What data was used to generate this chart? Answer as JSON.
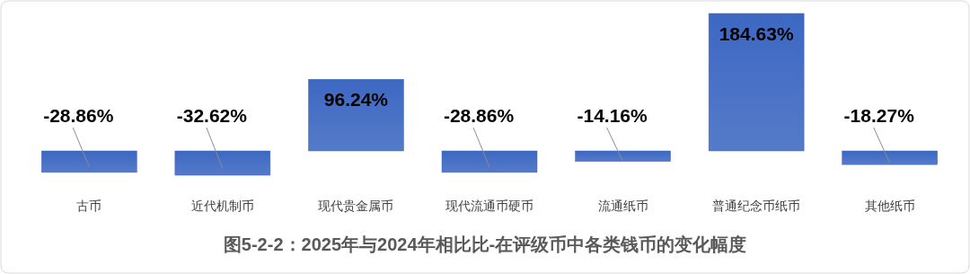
{
  "chart_data": {
    "type": "bar",
    "title": "图5-2-2：2025年与2024年相比比-在评级币中各类钱币的变化幅度",
    "categories": [
      "古币",
      "近代机制币",
      "现代贵金属币",
      "现代流通币硬币",
      "流通纸币",
      "普通纪念币纸币",
      "其他纸币"
    ],
    "values": [
      -28.86,
      -32.62,
      96.24,
      -28.86,
      -14.16,
      184.63,
      -18.27
    ],
    "color": "#3d68c2",
    "value_labels": [
      "-28.86%",
      "-32.62%",
      "96.24%",
      "-28.86%",
      "-14.16%",
      "184.63%",
      "-18.27%"
    ]
  }
}
